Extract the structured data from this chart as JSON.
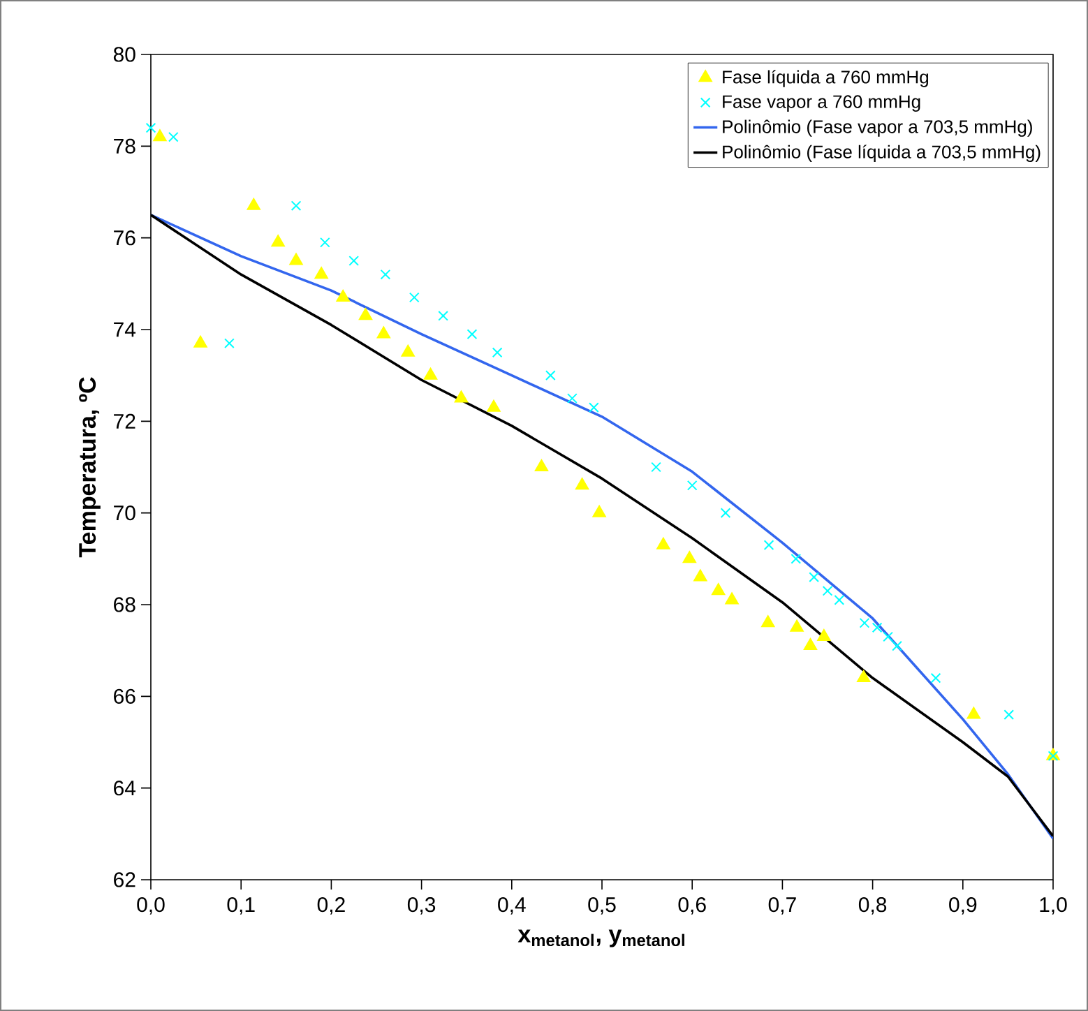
{
  "chart_data": {
    "type": "scatter",
    "xlabel": "x$_{metanol}$, y$_{metanol}$",
    "ylabel": "Temperatura, ºC",
    "xlim": [
      0,
      1
    ],
    "ylim": [
      62,
      80
    ],
    "xticks": [
      {
        "value": 0,
        "label": "0,0"
      },
      {
        "value": 0.1,
        "label": "0,1"
      },
      {
        "value": 0.2,
        "label": "0,2"
      },
      {
        "value": 0.3,
        "label": "0,3"
      },
      {
        "value": 0.4,
        "label": "0,4"
      },
      {
        "value": 0.5,
        "label": "0,5"
      },
      {
        "value": 0.6,
        "label": "0,6"
      },
      {
        "value": 0.7,
        "label": "0,7"
      },
      {
        "value": 0.8,
        "label": "0,8"
      },
      {
        "value": 0.9,
        "label": "0,9"
      },
      {
        "value": 1,
        "label": "1,0"
      }
    ],
    "yticks": [
      62,
      64,
      66,
      68,
      70,
      72,
      74,
      76,
      78,
      80
    ],
    "grid": false,
    "legend": "top right",
    "series": [
      {
        "name": "Fase líquida a 760 mmHg",
        "marker": "triangle",
        "color": "#ffff00",
        "x": [
          0.01,
          0.055,
          0.114,
          0.141,
          0.161,
          0.189,
          0.213,
          0.238,
          0.258,
          0.285,
          0.31,
          0.344,
          0.38,
          0.433,
          0.478,
          0.497,
          0.568,
          0.597,
          0.609,
          0.629,
          0.644,
          0.684,
          0.716,
          0.731,
          0.746,
          0.79,
          0.912,
          1.0
        ],
        "values": [
          78.2,
          73.7,
          76.7,
          75.9,
          75.5,
          75.2,
          74.7,
          74.3,
          73.9,
          73.5,
          73.0,
          72.5,
          72.3,
          71.0,
          70.6,
          70.0,
          69.3,
          69.0,
          68.6,
          68.3,
          68.1,
          67.6,
          67.5,
          67.1,
          67.3,
          66.4,
          65.6,
          64.7
        ]
      },
      {
        "name": "Fase vapor a 760 mmHg",
        "marker": "cross",
        "color": "#00ffff",
        "x": [
          0.0,
          0.025,
          0.087,
          0.161,
          0.193,
          0.225,
          0.26,
          0.292,
          0.324,
          0.356,
          0.384,
          0.443,
          0.467,
          0.491,
          0.56,
          0.6,
          0.637,
          0.685,
          0.715,
          0.735,
          0.75,
          0.763,
          0.791,
          0.805,
          0.817,
          0.827,
          0.87,
          0.951,
          1.0
        ],
        "values": [
          78.4,
          78.2,
          73.7,
          76.7,
          75.9,
          75.5,
          75.2,
          74.7,
          74.3,
          73.9,
          73.5,
          73.0,
          72.5,
          72.3,
          71.0,
          70.6,
          70.0,
          69.3,
          69.0,
          68.6,
          68.3,
          68.1,
          67.6,
          67.5,
          67.3,
          67.1,
          66.4,
          65.6,
          64.7
        ]
      },
      {
        "name": "Polinômio (Fase vapor a 703,5 mmHg)",
        "type": "line",
        "marker": "none",
        "line_style": "solid",
        "color": "#3366ee",
        "x": [
          0,
          0.1,
          0.2,
          0.3,
          0.4,
          0.5,
          0.6,
          0.7,
          0.8,
          0.9,
          0.95,
          1.0
        ],
        "values": [
          76.5,
          75.6,
          74.85,
          73.9,
          73.0,
          72.1,
          70.9,
          69.35,
          67.7,
          65.5,
          64.3,
          62.9
        ]
      },
      {
        "name": "Polinômio (Fase líquida a 703,5 mmHg)",
        "type": "line",
        "marker": "none",
        "line_style": "solid",
        "color": "#000000",
        "x": [
          0,
          0.1,
          0.2,
          0.3,
          0.4,
          0.5,
          0.6,
          0.7,
          0.8,
          0.9,
          0.95,
          1.0
        ],
        "values": [
          76.5,
          75.2,
          74.1,
          72.9,
          71.9,
          70.75,
          69.45,
          68.05,
          66.4,
          65.0,
          64.25,
          62.95
        ]
      }
    ]
  }
}
